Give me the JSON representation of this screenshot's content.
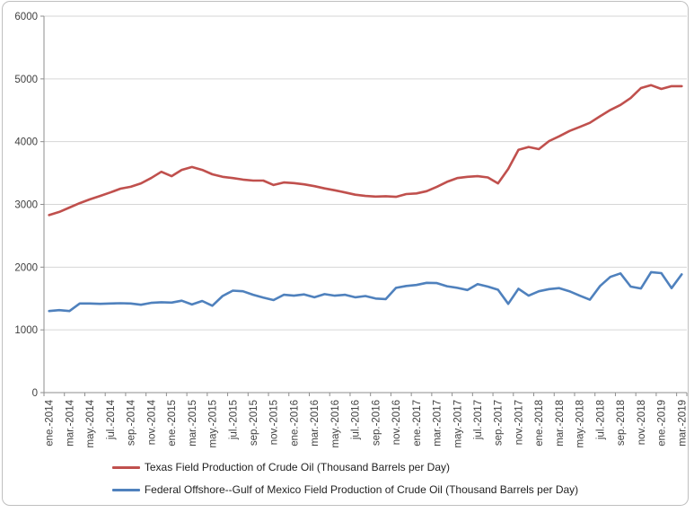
{
  "chart_data": {
    "type": "line",
    "title": "",
    "x_start": "ene.-2014",
    "x_end": "mar.-2019",
    "x_tick_labels": [
      "ene.-2014",
      "mar.-2014",
      "may.-2014",
      "jul.-2014",
      "sep.-2014",
      "nov.-2014",
      "ene.-2015",
      "mar.-2015",
      "may.-2015",
      "jul.-2015",
      "sep.-2015",
      "nov.-2015",
      "ene.-2016",
      "mar.-2016",
      "may.-2016",
      "jul.-2016",
      "sep.-2016",
      "nov.-2016",
      "ene.-2017",
      "mar.-2017",
      "may.-2017",
      "jul.-2017",
      "sep.-2017",
      "nov.-2017",
      "ene.-2018",
      "mar.-2018",
      "may.-2018",
      "jul.-2018",
      "sep.-2018",
      "nov.-2018",
      "ene.-2019",
      "mar.-2019"
    ],
    "y_ticks": [
      0,
      1000,
      2000,
      3000,
      4000,
      5000,
      6000
    ],
    "ylim": [
      0,
      6000
    ],
    "grid": "horizontal",
    "legend_position": "bottom",
    "grid_color": "#d6d6d6",
    "axis_color": "#8e8e8e",
    "tick_label_color": "#404040",
    "series": [
      {
        "name": "Texas Field Production of Crude Oil (Thousand Barrels per Day)",
        "color": "#C0504D",
        "values": [
          2830,
          2880,
          2950,
          3020,
          3080,
          3135,
          3190,
          3250,
          3280,
          3335,
          3420,
          3520,
          3450,
          3550,
          3595,
          3550,
          3480,
          3440,
          3420,
          3395,
          3380,
          3380,
          3310,
          3350,
          3340,
          3320,
          3290,
          3255,
          3225,
          3190,
          3155,
          3135,
          3125,
          3130,
          3120,
          3165,
          3175,
          3210,
          3280,
          3360,
          3420,
          3440,
          3450,
          3430,
          3335,
          3565,
          3870,
          3915,
          3880,
          4010,
          4085,
          4170,
          4235,
          4300,
          4405,
          4505,
          4585,
          4695,
          4855,
          4900,
          4840,
          4885,
          4885
        ]
      },
      {
        "name": "Federal Offshore--Gulf of Mexico Field Production of Crude Oil (Thousand Barrels per Day)",
        "color": "#4F81BD",
        "values": [
          1300,
          1315,
          1300,
          1420,
          1420,
          1415,
          1420,
          1425,
          1420,
          1400,
          1430,
          1440,
          1435,
          1465,
          1405,
          1460,
          1385,
          1540,
          1625,
          1615,
          1560,
          1515,
          1475,
          1560,
          1545,
          1565,
          1520,
          1570,
          1545,
          1560,
          1520,
          1540,
          1500,
          1490,
          1670,
          1700,
          1715,
          1750,
          1745,
          1695,
          1670,
          1635,
          1730,
          1690,
          1640,
          1415,
          1655,
          1545,
          1615,
          1650,
          1665,
          1615,
          1545,
          1480,
          1700,
          1845,
          1900,
          1690,
          1660,
          1920,
          1905,
          1665,
          1885
        ]
      }
    ]
  }
}
